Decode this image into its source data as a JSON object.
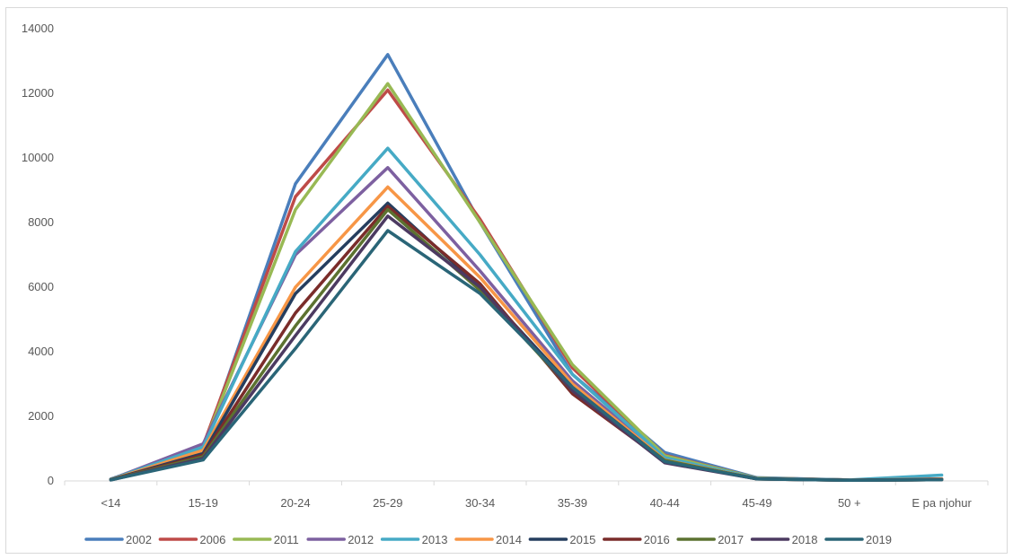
{
  "chart_data": {
    "type": "line",
    "title": "",
    "xlabel": "",
    "ylabel": "",
    "categories": [
      "<14",
      "15-19",
      "20-24",
      "25-29",
      "30-34",
      "35-39",
      "40-44",
      "45-49",
      "50 +",
      "E pa njohur"
    ],
    "ylim": [
      0,
      14000
    ],
    "yticks": [
      0,
      2000,
      4000,
      6000,
      8000,
      10000,
      12000,
      14000
    ],
    "grid": false,
    "legend_position": "bottom",
    "series": [
      {
        "name": "2002",
        "color": "#4a7ebb",
        "values": [
          60,
          1000,
          9200,
          13200,
          8000,
          3300,
          880,
          100,
          30,
          50
        ]
      },
      {
        "name": "2006",
        "color": "#be4b48",
        "values": [
          50,
          1100,
          8800,
          12100,
          8100,
          3500,
          800,
          90,
          30,
          50
        ]
      },
      {
        "name": "2011",
        "color": "#98b954",
        "values": [
          50,
          1050,
          8400,
          12300,
          8000,
          3600,
          780,
          90,
          30,
          60
        ]
      },
      {
        "name": "2012",
        "color": "#7d60a0",
        "values": [
          50,
          1150,
          7000,
          9700,
          6500,
          3100,
          700,
          80,
          30,
          60
        ]
      },
      {
        "name": "2013",
        "color": "#46aac5",
        "values": [
          50,
          1050,
          7100,
          10300,
          7000,
          3300,
          720,
          80,
          30,
          180
        ]
      },
      {
        "name": "2014",
        "color": "#f79646",
        "values": [
          40,
          950,
          6000,
          9100,
          6300,
          3000,
          650,
          70,
          25,
          60
        ]
      },
      {
        "name": "2015",
        "color": "#253e5f",
        "values": [
          40,
          850,
          5800,
          8600,
          6000,
          2900,
          620,
          70,
          25,
          50
        ]
      },
      {
        "name": "2016",
        "color": "#7a2c2a",
        "values": [
          35,
          800,
          5200,
          8500,
          6100,
          2700,
          600,
          60,
          20,
          40
        ]
      },
      {
        "name": "2017",
        "color": "#5c7230",
        "values": [
          35,
          750,
          4800,
          8400,
          5900,
          2800,
          640,
          60,
          20,
          40
        ]
      },
      {
        "name": "2018",
        "color": "#4c3a61",
        "values": [
          30,
          700,
          4500,
          8200,
          6000,
          2800,
          560,
          60,
          20,
          40
        ]
      },
      {
        "name": "2019",
        "color": "#2a6577",
        "values": [
          30,
          650,
          4100,
          7750,
          5800,
          2900,
          600,
          60,
          20,
          40
        ]
      }
    ]
  }
}
